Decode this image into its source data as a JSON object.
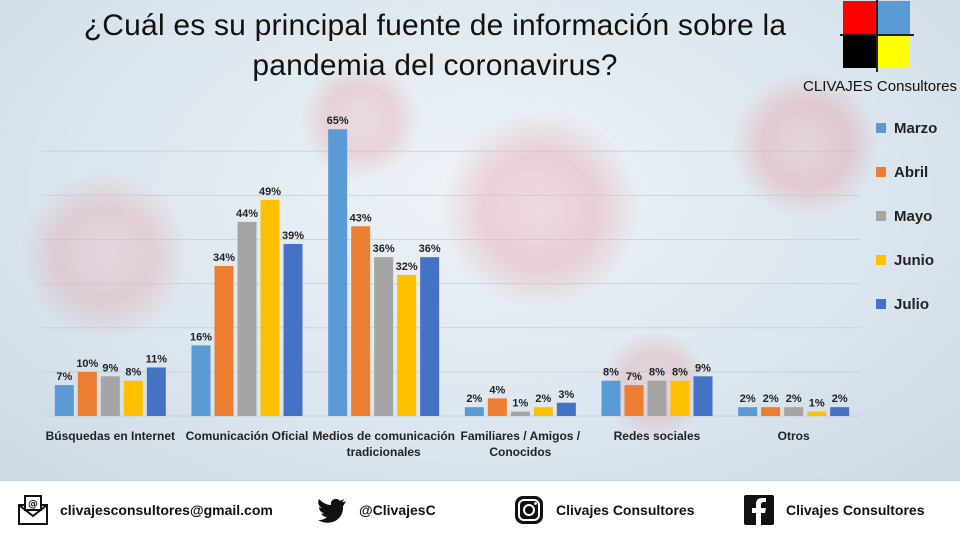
{
  "title_line1": "¿Cuál es su principal fuente de información sobre la",
  "title_line2": "pandemia del coronavirus?",
  "logo": {
    "text": "CLIVAJES Consultores",
    "colors": [
      "#ff0000",
      "#5b9bd5",
      "#000000",
      "#ffff00"
    ]
  },
  "chart_data": {
    "type": "bar",
    "categories": [
      [
        "Búsquedas en Internet"
      ],
      [
        "Comunicación Oficial"
      ],
      [
        "Medios de comunicación",
        "tradicionales"
      ],
      [
        "Familiares / Amigos /",
        "Conocidos"
      ],
      [
        "Redes sociales"
      ],
      [
        "Otros"
      ]
    ],
    "series": [
      {
        "name": "Marzo",
        "color": "#5b9bd5",
        "values": [
          7,
          16,
          65,
          2,
          8,
          2
        ]
      },
      {
        "name": "Abril",
        "color": "#ed7d31",
        "values": [
          10,
          34,
          43,
          4,
          7,
          2
        ]
      },
      {
        "name": "Mayo",
        "color": "#a5a5a5",
        "values": [
          9,
          44,
          36,
          1,
          8,
          2
        ]
      },
      {
        "name": "Junio",
        "color": "#ffc000",
        "values": [
          8,
          49,
          32,
          2,
          8,
          1
        ]
      },
      {
        "name": "Julio",
        "color": "#4472c4",
        "values": [
          11,
          39,
          36,
          3,
          9,
          2
        ]
      }
    ],
    "value_suffix": "%",
    "ylim": [
      0,
      68
    ],
    "grid": true,
    "legend_position": "right"
  },
  "footer": {
    "email": "clivajesconsultores@gmail.com",
    "twitter": "@ClivajesC",
    "instagram": "Clivajes Consultores",
    "facebook": "Clivajes Consultores",
    "icons": [
      "email-icon",
      "twitter-icon",
      "instagram-icon",
      "facebook-icon"
    ]
  }
}
